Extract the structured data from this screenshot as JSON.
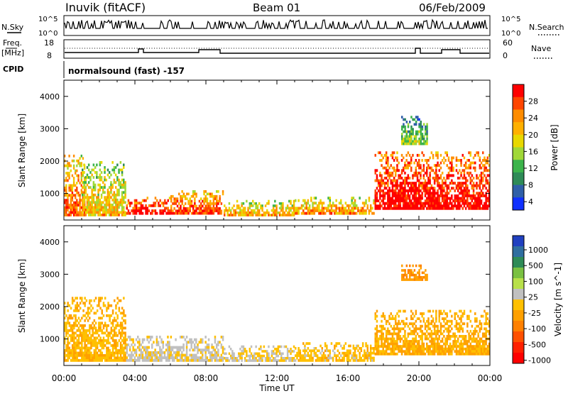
{
  "header": {
    "station": "Inuvik (fitACF)",
    "beam": "Beam 01",
    "date": "06/Feb/2009"
  },
  "panels": {
    "nsky": {
      "label": "N.Sky",
      "left_ticks": [
        "10^5",
        "10^0"
      ],
      "right_ticks": [
        "10^5",
        "10^0"
      ],
      "right_label": "N.Search"
    },
    "freq": {
      "label_line1": "Freq.",
      "label_line2": "[MHz]",
      "left_ticks": [
        "18",
        "8"
      ],
      "right_ticks": [
        "60",
        "0"
      ],
      "right_label": "Nave"
    },
    "cpid": {
      "label": "CPID",
      "text": "normalsound (fast) -157"
    }
  },
  "axes": {
    "ylabel": "Slant Range [km]",
    "xlabel": "Time UT",
    "x_ticks": [
      "00:00",
      "04:00",
      "08:00",
      "12:00",
      "16:00",
      "20:00",
      "00:00"
    ],
    "y_ticks": [
      "1000",
      "2000",
      "3000",
      "4000"
    ]
  },
  "colorbars": {
    "power": {
      "label": "Power [dB]",
      "ticks": [
        "28",
        "24",
        "20",
        "16",
        "12",
        "8",
        "4"
      ],
      "colors": [
        "#ff0000",
        "#ff4500",
        "#ff8c00",
        "#ffb000",
        "#e8d800",
        "#a0d838",
        "#3cb44b",
        "#2e8b57",
        "#2f5fa8",
        "#1030ff"
      ]
    },
    "velocity": {
      "label": "Velocity [m s^-1]",
      "ticks": [
        "1000",
        "500",
        "100",
        "25",
        "-25",
        "-100",
        "-500",
        "-1000"
      ],
      "colors": [
        "#2040c0",
        "#2f6ea0",
        "#2e8b57",
        "#7ac142",
        "#b8e04a",
        "#c0c0c0",
        "#ffc000",
        "#ffa000",
        "#ff8000",
        "#ff5000",
        "#ff2000",
        "#ff0000"
      ]
    }
  },
  "chart_data": {
    "type": "heatmap",
    "title": "Inuvik (fitACF) Beam 01 06/Feb/2009",
    "x_range_hours": [
      0,
      24
    ],
    "y_range_km": [
      180,
      4500
    ],
    "xlabel": "Time UT",
    "ylabel": "Slant Range [km]",
    "power_scale_db": [
      0,
      30
    ],
    "velocity_scale_ms": [
      -1000,
      1000
    ],
    "power_echo_regions": [
      {
        "t_start": 0.0,
        "t_end": 1.2,
        "r_min": 300,
        "r_max": 2200,
        "power_db": 22
      },
      {
        "t_start": 1.0,
        "t_end": 3.5,
        "r_min": 300,
        "r_max": 2000,
        "power_db": 16
      },
      {
        "t_start": 3.5,
        "t_end": 6.0,
        "r_min": 350,
        "r_max": 900,
        "power_db": 28
      },
      {
        "t_start": 6.0,
        "t_end": 9.0,
        "r_min": 350,
        "r_max": 1100,
        "power_db": 24
      },
      {
        "t_start": 9.0,
        "t_end": 13.0,
        "r_min": 300,
        "r_max": 800,
        "power_db": 18
      },
      {
        "t_start": 13.0,
        "t_end": 17.5,
        "r_min": 350,
        "r_max": 900,
        "power_db": 20
      },
      {
        "t_start": 17.5,
        "t_end": 24.0,
        "r_min": 500,
        "r_max": 2300,
        "power_db": 28
      },
      {
        "t_start": 19.0,
        "t_end": 20.5,
        "r_min": 2500,
        "r_max": 3400,
        "power_db": 10
      }
    ],
    "velocity_echo_regions": [
      {
        "t_start": 0.0,
        "t_end": 3.5,
        "r_min": 300,
        "r_max": 2300,
        "velocity_ms": -150
      },
      {
        "t_start": 3.5,
        "t_end": 9.0,
        "r_min": 300,
        "r_max": 1100,
        "velocity_ms": 50
      },
      {
        "t_start": 9.0,
        "t_end": 13.0,
        "r_min": 300,
        "r_max": 800,
        "velocity_ms": 20
      },
      {
        "t_start": 13.0,
        "t_end": 17.5,
        "r_min": 300,
        "r_max": 900,
        "velocity_ms": -100
      },
      {
        "t_start": 17.5,
        "t_end": 24.0,
        "r_min": 500,
        "r_max": 1900,
        "velocity_ms": -200
      },
      {
        "t_start": 19.0,
        "t_end": 20.5,
        "r_min": 2800,
        "r_max": 3300,
        "velocity_ms": -300
      }
    ]
  }
}
